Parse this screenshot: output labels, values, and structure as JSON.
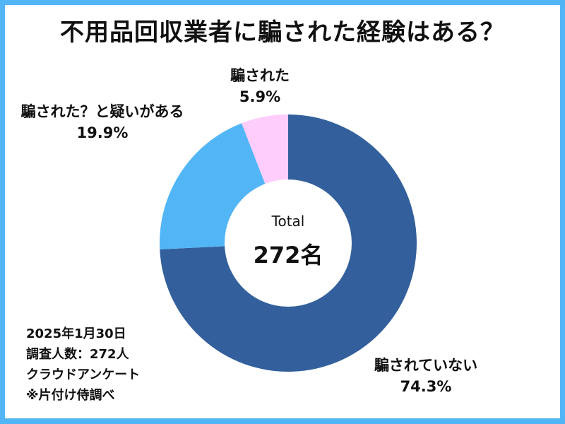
{
  "colors": {
    "frame": "#52b6f6",
    "not_deceived": "#33609c",
    "suspected": "#52b6f6",
    "deceived": "#ffcdfb"
  },
  "chart_data": {
    "type": "pie",
    "variant": "donut",
    "title": "不用品回収業者に騙された経験はある？",
    "categories": [
      "騙されていない",
      "騙された？と疑いがある",
      "騙された"
    ],
    "values": [
      74.3,
      19.9,
      5.9
    ],
    "unit": "%",
    "center_label": "Total",
    "center_value": "272名",
    "start_angle": "12 o'clock, clockwise",
    "legend": "data labels outside slices"
  },
  "title": "不用品回収業者に騙された経験はある？",
  "center": {
    "label": "Total",
    "value": "272名"
  },
  "labels": {
    "deceived": {
      "name": "騙された",
      "pct": "5.9%"
    },
    "suspected": {
      "name": "騙された？と疑いがある",
      "pct": "19.9%"
    },
    "not_deceived": {
      "name": "騙されていない",
      "pct": "74.3%"
    }
  },
  "notes": {
    "date": "2025年1月30日",
    "respondents": "調査人数：272人",
    "method": "クラウドアンケート",
    "source": "※片付け侍調べ"
  }
}
